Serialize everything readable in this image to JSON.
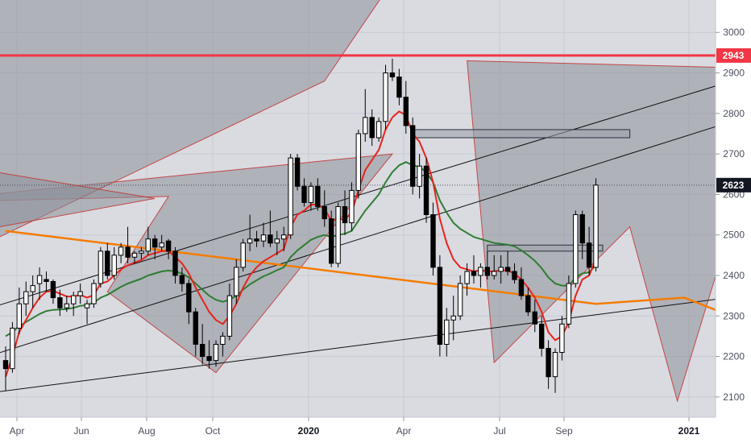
{
  "chart_data": {
    "type": "candlestick",
    "title": "",
    "colors": {
      "up_candle": "#ffffff",
      "down_candle": "#000000",
      "ema_fast": "#e8231c",
      "ema_slow": "#2e7d32",
      "long_ma": "#f57c00",
      "resistance_line": "#f23645",
      "harmonic_fill": "#8c8f99",
      "harmonic_edge": "#c62828",
      "trendline": "#111111",
      "zone_fill": "#9ea1aa",
      "background": "#d9dbe1"
    },
    "x_axis": {
      "labels": [
        {
          "text": "Apr",
          "bold": false
        },
        {
          "text": "Jun",
          "bold": false
        },
        {
          "text": "Aug",
          "bold": false
        },
        {
          "text": "Oct",
          "bold": false
        },
        {
          "text": "2020",
          "bold": true
        },
        {
          "text": "Apr",
          "bold": false
        },
        {
          "text": "Jul",
          "bold": false
        },
        {
          "text": "Sep",
          "bold": false
        },
        {
          "text": "2021",
          "bold": true
        }
      ]
    },
    "y_axis": {
      "range": [
        2050,
        3080
      ],
      "ticks": [
        2100,
        2200,
        2300,
        2400,
        2500,
        2600,
        2700,
        2800,
        2900,
        3000
      ]
    },
    "price_tags": [
      {
        "label": "2943",
        "value": 2943,
        "color": "#f23645"
      },
      {
        "label": "2623",
        "value": 2623,
        "color": "#131722"
      }
    ],
    "candles": [
      [
        2190,
        2225,
        2115,
        2170
      ],
      [
        2170,
        2285,
        2160,
        2270
      ],
      [
        2270,
        2370,
        2255,
        2330
      ],
      [
        2330,
        2385,
        2300,
        2360
      ],
      [
        2360,
        2400,
        2320,
        2375
      ],
      [
        2380,
        2420,
        2340,
        2400
      ],
      [
        2390,
        2410,
        2360,
        2385
      ],
      [
        2385,
        2390,
        2330,
        2345
      ],
      [
        2345,
        2365,
        2300,
        2320
      ],
      [
        2320,
        2350,
        2310,
        2330
      ],
      [
        2330,
        2360,
        2300,
        2350
      ],
      [
        2350,
        2380,
        2330,
        2360
      ],
      [
        2320,
        2340,
        2280,
        2330
      ],
      [
        2330,
        2390,
        2320,
        2380
      ],
      [
        2380,
        2470,
        2370,
        2460
      ],
      [
        2460,
        2480,
        2390,
        2400
      ],
      [
        2400,
        2470,
        2390,
        2450
      ],
      [
        2450,
        2480,
        2430,
        2470
      ],
      [
        2470,
        2520,
        2430,
        2445
      ],
      [
        2445,
        2460,
        2430,
        2455
      ],
      [
        2455,
        2470,
        2440,
        2460
      ],
      [
        2460,
        2520,
        2450,
        2490
      ],
      [
        2490,
        2500,
        2440,
        2470
      ],
      [
        2470,
        2500,
        2460,
        2480
      ],
      [
        2485,
        2490,
        2440,
        2460
      ],
      [
        2460,
        2470,
        2380,
        2400
      ],
      [
        2400,
        2420,
        2360,
        2380
      ],
      [
        2380,
        2390,
        2280,
        2310
      ],
      [
        2310,
        2320,
        2200,
        2230
      ],
      [
        2230,
        2280,
        2180,
        2200
      ],
      [
        2200,
        2240,
        2170,
        2190
      ],
      [
        2190,
        2240,
        2175,
        2230
      ],
      [
        2230,
        2260,
        2200,
        2250
      ],
      [
        2250,
        2380,
        2240,
        2350
      ],
      [
        2350,
        2440,
        2330,
        2420
      ],
      [
        2420,
        2490,
        2410,
        2480
      ],
      [
        2480,
        2550,
        2460,
        2490
      ],
      [
        2490,
        2510,
        2470,
        2485
      ],
      [
        2485,
        2530,
        2470,
        2500
      ],
      [
        2500,
        2560,
        2470,
        2480
      ],
      [
        2480,
        2510,
        2450,
        2490
      ],
      [
        2490,
        2520,
        2460,
        2500
      ],
      [
        2500,
        2700,
        2490,
        2690
      ],
      [
        2690,
        2700,
        2610,
        2620
      ],
      [
        2620,
        2640,
        2570,
        2580
      ],
      [
        2580,
        2630,
        2560,
        2620
      ],
      [
        2620,
        2640,
        2560,
        2570
      ],
      [
        2570,
        2610,
        2520,
        2540
      ],
      [
        2540,
        2560,
        2420,
        2430
      ],
      [
        2430,
        2580,
        2420,
        2570
      ],
      [
        2570,
        2610,
        2500,
        2530
      ],
      [
        2530,
        2630,
        2510,
        2610
      ],
      [
        2610,
        2760,
        2590,
        2750
      ],
      [
        2750,
        2860,
        2730,
        2790
      ],
      [
        2790,
        2810,
        2720,
        2740
      ],
      [
        2740,
        2790,
        2730,
        2780
      ],
      [
        2780,
        2920,
        2760,
        2900
      ],
      [
        2900,
        2935,
        2880,
        2890
      ],
      [
        2890,
        2910,
        2820,
        2840
      ],
      [
        2840,
        2880,
        2750,
        2770
      ],
      [
        2770,
        2790,
        2600,
        2620
      ],
      [
        2620,
        2700,
        2590,
        2670
      ],
      [
        2670,
        2690,
        2530,
        2550
      ],
      [
        2550,
        2580,
        2400,
        2420
      ],
      [
        2420,
        2450,
        2200,
        2230
      ],
      [
        2230,
        2320,
        2200,
        2290
      ],
      [
        2290,
        2350,
        2240,
        2300
      ],
      [
        2300,
        2400,
        2290,
        2380
      ],
      [
        2380,
        2430,
        2350,
        2410
      ],
      [
        2410,
        2450,
        2380,
        2400
      ],
      [
        2400,
        2430,
        2370,
        2420
      ],
      [
        2420,
        2460,
        2390,
        2400
      ],
      [
        2400,
        2450,
        2390,
        2410
      ],
      [
        2410,
        2450,
        2380,
        2420
      ],
      [
        2420,
        2460,
        2400,
        2410
      ],
      [
        2410,
        2430,
        2380,
        2390
      ],
      [
        2390,
        2420,
        2340,
        2350
      ],
      [
        2350,
        2370,
        2300,
        2310
      ],
      [
        2310,
        2340,
        2260,
        2280
      ],
      [
        2280,
        2300,
        2200,
        2220
      ],
      [
        2220,
        2240,
        2120,
        2150
      ],
      [
        2150,
        2220,
        2110,
        2210
      ],
      [
        2210,
        2300,
        2190,
        2280
      ],
      [
        2280,
        2400,
        2270,
        2380
      ],
      [
        2380,
        2560,
        2370,
        2550
      ],
      [
        2550,
        2560,
        2440,
        2480
      ],
      [
        2480,
        2520,
        2400,
        2420
      ],
      [
        2420,
        2640,
        2410,
        2623
      ]
    ],
    "ema_fast": [
      2150,
      2200,
      2260,
      2290,
      2320,
      2345,
      2360,
      2362,
      2355,
      2348,
      2348,
      2352,
      2345,
      2352,
      2380,
      2385,
      2400,
      2415,
      2425,
      2432,
      2438,
      2450,
      2455,
      2460,
      2460,
      2445,
      2430,
      2405,
      2370,
      2340,
      2310,
      2290,
      2280,
      2300,
      2330,
      2370,
      2400,
      2420,
      2435,
      2445,
      2455,
      2465,
      2520,
      2550,
      2560,
      2575,
      2575,
      2565,
      2535,
      2540,
      2538,
      2555,
      2610,
      2660,
      2685,
      2710,
      2760,
      2790,
      2805,
      2795,
      2750,
      2730,
      2690,
      2630,
      2540,
      2480,
      2440,
      2420,
      2415,
      2410,
      2413,
      2410,
      2410,
      2413,
      2412,
      2405,
      2390,
      2370,
      2345,
      2310,
      2260,
      2240,
      2250,
      2285,
      2350,
      2390,
      2400,
      2440
    ],
    "ema_slow": [
      2250,
      2260,
      2275,
      2285,
      2295,
      2305,
      2312,
      2315,
      2316,
      2317,
      2320,
      2325,
      2327,
      2333,
      2345,
      2352,
      2362,
      2372,
      2380,
      2386,
      2392,
      2400,
      2405,
      2410,
      2412,
      2410,
      2405,
      2395,
      2380,
      2365,
      2350,
      2340,
      2335,
      2340,
      2350,
      2365,
      2378,
      2388,
      2398,
      2405,
      2413,
      2420,
      2445,
      2462,
      2475,
      2488,
      2495,
      2500,
      2495,
      2500,
      2503,
      2510,
      2535,
      2560,
      2580,
      2600,
      2630,
      2655,
      2672,
      2680,
      2672,
      2668,
      2655,
      2630,
      2585,
      2555,
      2530,
      2515,
      2505,
      2495,
      2490,
      2485,
      2480,
      2478,
      2476,
      2472,
      2462,
      2450,
      2436,
      2418,
      2395,
      2380,
      2375,
      2375,
      2395,
      2405,
      2408,
      2425
    ],
    "long_ma": [
      [
        0,
        2510
      ],
      [
        87,
        2330
      ],
      [
        100,
        2345
      ],
      [
        110,
        2280
      ]
    ],
    "resistance": 2943,
    "dotted_level": 2623,
    "trendlines": [
      {
        "x1": -14,
        "y1": 2085,
        "x2": 169,
        "y2": 2480
      },
      {
        "x1": -14,
        "y1": 2260,
        "x2": 150,
        "y2": 3100
      },
      {
        "x1": -14,
        "y1": 2140,
        "x2": 160,
        "y2": 3060
      }
    ],
    "zones": [
      {
        "x1": 110,
        "x2": 175,
        "y1": 2910,
        "y2": 2925
      },
      {
        "x1": 60,
        "x2": 92,
        "y1": 2740,
        "y2": 2760
      },
      {
        "x1": 71,
        "x2": 88,
        "y1": 2460,
        "y2": 2475
      },
      {
        "x1": 123,
        "x2": 143,
        "y1": 2612,
        "y2": 2620
      },
      {
        "x1": 127,
        "x2": 143,
        "y1": 2410,
        "y2": 2420
      }
    ],
    "harmonics": [
      [
        [
          -14,
          2580
        ],
        [
          24,
          2595
        ],
        [
          15,
          2360
        ],
        [
          31,
          2160
        ],
        [
          57,
          2700
        ]
      ],
      [
        [
          68,
          2930
        ],
        [
          72,
          2185
        ],
        [
          92,
          2520
        ],
        [
          99,
          2090
        ],
        [
          114,
          2910
        ]
      ],
      [
        [
          -14,
          3000
        ],
        [
          -14,
          2390
        ],
        [
          47,
          2880
        ],
        [
          60,
          3200
        ],
        [
          -14,
          3200
        ]
      ],
      [
        [
          -14,
          2690
        ],
        [
          -14,
          2480
        ],
        [
          22,
          2590
        ]
      ]
    ]
  }
}
